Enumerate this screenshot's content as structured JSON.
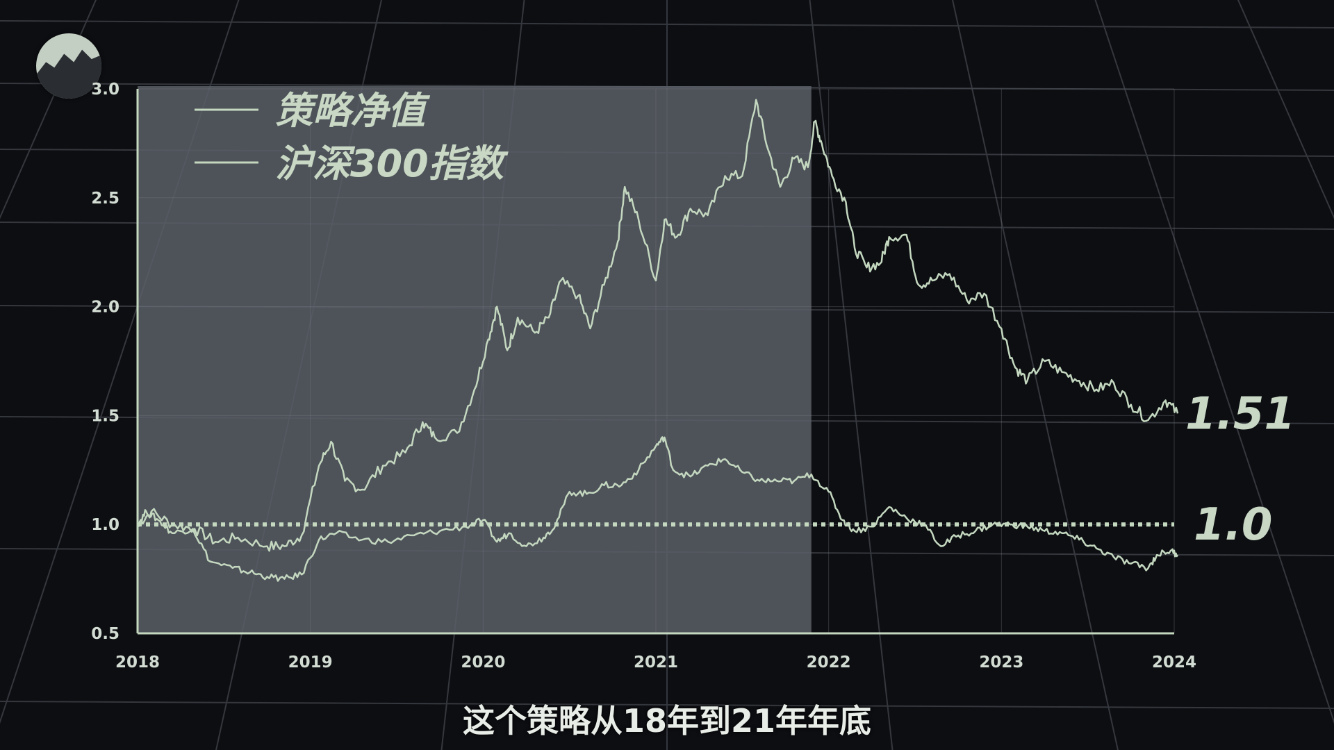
{
  "colors": {
    "background": "#0d0e12",
    "highlight": "#5a5e66",
    "line": "#c4d8c0",
    "axis": "#c4d8c0"
  },
  "logo_icon": "mountain-chart-icon",
  "subtitle": "这个策略从18年到21年年底",
  "chart_data": {
    "type": "line",
    "x_ticks": [
      "2018",
      "2019",
      "2020",
      "2021",
      "2022",
      "2023",
      "2024"
    ],
    "xlim": [
      2018.0,
      2024.0
    ],
    "y_ticks": [
      "0.5",
      "1.0",
      "1.5",
      "2.0",
      "2.5",
      "3.0"
    ],
    "ylim": [
      0.5,
      3.0
    ],
    "highlight_range": [
      2018.0,
      2021.9
    ],
    "reference_line": {
      "y": 1.0,
      "style": "dotted",
      "label": "1.0"
    },
    "legend_placement": "top-left",
    "series": [
      {
        "name": "策略净值",
        "end_label": "1.51",
        "points": [
          [
            2018.0,
            1.0
          ],
          [
            2018.08,
            1.06
          ],
          [
            2018.2,
            1.0
          ],
          [
            2018.33,
            0.98
          ],
          [
            2018.45,
            0.92
          ],
          [
            2018.58,
            0.94
          ],
          [
            2018.75,
            0.9
          ],
          [
            2018.85,
            0.9
          ],
          [
            2018.95,
            0.95
          ],
          [
            2019.05,
            1.27
          ],
          [
            2019.12,
            1.38
          ],
          [
            2019.2,
            1.2
          ],
          [
            2019.3,
            1.16
          ],
          [
            2019.42,
            1.27
          ],
          [
            2019.55,
            1.33
          ],
          [
            2019.65,
            1.47
          ],
          [
            2019.72,
            1.4
          ],
          [
            2019.85,
            1.42
          ],
          [
            2019.95,
            1.62
          ],
          [
            2020.03,
            1.85
          ],
          [
            2020.08,
            2.0
          ],
          [
            2020.14,
            1.8
          ],
          [
            2020.2,
            1.95
          ],
          [
            2020.3,
            1.88
          ],
          [
            2020.38,
            1.95
          ],
          [
            2020.45,
            2.12
          ],
          [
            2020.55,
            2.05
          ],
          [
            2020.62,
            1.9
          ],
          [
            2020.7,
            2.1
          ],
          [
            2020.78,
            2.3
          ],
          [
            2020.82,
            2.55
          ],
          [
            2020.9,
            2.4
          ],
          [
            2021.0,
            2.12
          ],
          [
            2021.05,
            2.4
          ],
          [
            2021.12,
            2.32
          ],
          [
            2021.2,
            2.45
          ],
          [
            2021.3,
            2.42
          ],
          [
            2021.4,
            2.6
          ],
          [
            2021.5,
            2.6
          ],
          [
            2021.58,
            2.95
          ],
          [
            2021.65,
            2.72
          ],
          [
            2021.72,
            2.55
          ],
          [
            2021.8,
            2.68
          ],
          [
            2021.88,
            2.64
          ],
          [
            2021.92,
            2.85
          ],
          [
            2021.96,
            2.75
          ],
          [
            2022.02,
            2.6
          ],
          [
            2022.1,
            2.48
          ],
          [
            2022.15,
            2.27
          ],
          [
            2022.22,
            2.18
          ],
          [
            2022.3,
            2.2
          ],
          [
            2022.35,
            2.32
          ],
          [
            2022.45,
            2.33
          ],
          [
            2022.52,
            2.1
          ],
          [
            2022.6,
            2.12
          ],
          [
            2022.7,
            2.15
          ],
          [
            2022.8,
            2.03
          ],
          [
            2022.9,
            2.06
          ],
          [
            2023.0,
            1.9
          ],
          [
            2023.08,
            1.72
          ],
          [
            2023.15,
            1.66
          ],
          [
            2023.25,
            1.75
          ],
          [
            2023.35,
            1.7
          ],
          [
            2023.45,
            1.66
          ],
          [
            2023.55,
            1.62
          ],
          [
            2023.65,
            1.65
          ],
          [
            2023.75,
            1.55
          ],
          [
            2023.85,
            1.48
          ],
          [
            2023.95,
            1.57
          ],
          [
            2024.02,
            1.51
          ]
        ]
      },
      {
        "name": "沪深300指数",
        "end_label": "",
        "points": [
          [
            2018.0,
            1.0
          ],
          [
            2018.05,
            1.06
          ],
          [
            2018.12,
            1.02
          ],
          [
            2018.2,
            0.96
          ],
          [
            2018.32,
            0.98
          ],
          [
            2018.42,
            0.83
          ],
          [
            2018.55,
            0.8
          ],
          [
            2018.65,
            0.78
          ],
          [
            2018.75,
            0.76
          ],
          [
            2018.85,
            0.75
          ],
          [
            2018.95,
            0.77
          ],
          [
            2019.05,
            0.93
          ],
          [
            2019.15,
            0.96
          ],
          [
            2019.3,
            0.93
          ],
          [
            2019.45,
            0.92
          ],
          [
            2019.6,
            0.95
          ],
          [
            2019.75,
            0.97
          ],
          [
            2019.9,
            0.99
          ],
          [
            2020.0,
            1.02
          ],
          [
            2020.08,
            0.92
          ],
          [
            2020.15,
            0.96
          ],
          [
            2020.25,
            0.9
          ],
          [
            2020.35,
            0.94
          ],
          [
            2020.42,
            1.0
          ],
          [
            2020.5,
            1.15
          ],
          [
            2020.6,
            1.14
          ],
          [
            2020.7,
            1.18
          ],
          [
            2020.8,
            1.18
          ],
          [
            2020.9,
            1.25
          ],
          [
            2021.0,
            1.36
          ],
          [
            2021.05,
            1.4
          ],
          [
            2021.1,
            1.25
          ],
          [
            2021.2,
            1.22
          ],
          [
            2021.3,
            1.27
          ],
          [
            2021.4,
            1.3
          ],
          [
            2021.5,
            1.24
          ],
          [
            2021.6,
            1.2
          ],
          [
            2021.7,
            1.2
          ],
          [
            2021.8,
            1.2
          ],
          [
            2021.9,
            1.23
          ],
          [
            2022.0,
            1.15
          ],
          [
            2022.08,
            1.02
          ],
          [
            2022.15,
            0.97
          ],
          [
            2022.25,
            0.99
          ],
          [
            2022.35,
            1.08
          ],
          [
            2022.45,
            1.03
          ],
          [
            2022.55,
            1.0
          ],
          [
            2022.65,
            0.9
          ],
          [
            2022.75,
            0.95
          ],
          [
            2022.85,
            0.97
          ],
          [
            2022.95,
            1.0
          ],
          [
            2023.05,
            1.0
          ],
          [
            2023.15,
            0.99
          ],
          [
            2023.25,
            0.97
          ],
          [
            2023.35,
            0.96
          ],
          [
            2023.45,
            0.93
          ],
          [
            2023.55,
            0.89
          ],
          [
            2023.65,
            0.85
          ],
          [
            2023.75,
            0.82
          ],
          [
            2023.85,
            0.8
          ],
          [
            2023.9,
            0.86
          ],
          [
            2023.98,
            0.88
          ],
          [
            2024.02,
            0.86
          ]
        ]
      }
    ]
  }
}
